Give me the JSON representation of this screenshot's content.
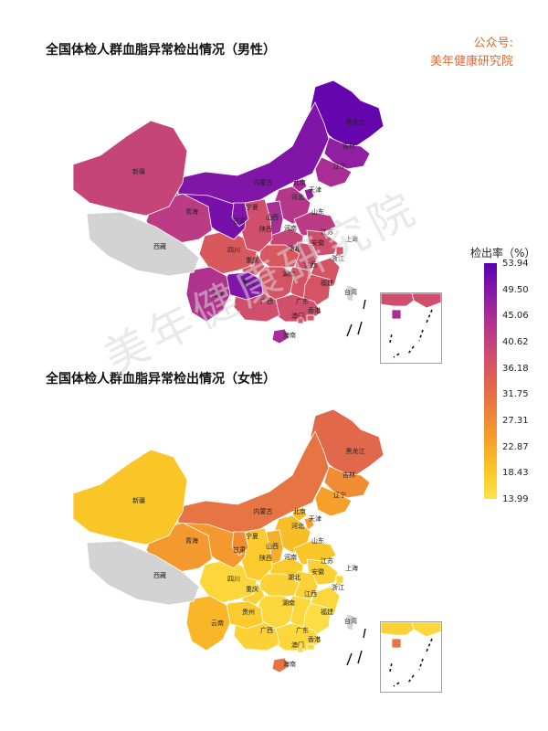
{
  "titles": {
    "male": "全国体检人群血脂异常检出情况（男性）",
    "female": "全国体检人群血脂异常检出情况（女性）"
  },
  "source": {
    "line1": "公众号:",
    "line2": "美年健康研究院"
  },
  "watermark": "美年健康研究院",
  "legend": {
    "title": "检出率（%）",
    "ticks": [
      "53.94",
      "49.50",
      "45.06",
      "40.62",
      "36.18",
      "31.75",
      "27.31",
      "22.87",
      "18.43",
      "13.99"
    ],
    "colors": [
      "#5b00b0",
      "#8a1aa6",
      "#b0328f",
      "#cc4a73",
      "#e0624f",
      "#ec803a",
      "#f5a02a",
      "#fac527",
      "#fde34a"
    ]
  },
  "no_data_color": "#d3d3d3",
  "provinces": [
    {
      "name": "黑龙江",
      "male": 53.0,
      "female": 33.0
    },
    {
      "name": "吉林",
      "male": 48.0,
      "female": 27.0
    },
    {
      "name": "辽宁",
      "male": 45.0,
      "female": 24.0
    },
    {
      "name": "内蒙古",
      "male": 50.0,
      "female": 31.0
    },
    {
      "name": "北京",
      "male": 45.0,
      "female": 20.0
    },
    {
      "name": "天津",
      "male": 47.0,
      "female": 24.0
    },
    {
      "name": "河北",
      "male": 43.0,
      "female": 20.0
    },
    {
      "name": "山西",
      "male": 45.0,
      "female": 22.0
    },
    {
      "name": "山东",
      "male": 42.0,
      "female": 19.0
    },
    {
      "name": "河南",
      "male": 40.0,
      "female": 18.0
    },
    {
      "name": "江苏",
      "male": 38.0,
      "female": 17.0
    },
    {
      "name": "上海",
      "male": 37.0,
      "female": 16.0
    },
    {
      "name": "安徽",
      "male": 38.0,
      "female": 17.0
    },
    {
      "name": "浙江",
      "male": 37.0,
      "female": 16.0
    },
    {
      "name": "湖北",
      "male": 36.0,
      "female": 17.0
    },
    {
      "name": "江西",
      "male": 37.0,
      "female": 16.0
    },
    {
      "name": "福建",
      "male": 37.0,
      "female": 15.0
    },
    {
      "name": "湖南",
      "male": 37.0,
      "female": 16.0
    },
    {
      "name": "广东",
      "male": 38.0,
      "female": 16.0
    },
    {
      "name": "广西",
      "male": 38.0,
      "female": 17.0
    },
    {
      "name": "海南",
      "male": 45.0,
      "female": 31.0
    },
    {
      "name": "香港",
      "male": 36.0,
      "female": 16.0
    },
    {
      "name": "澳门",
      "male": 36.0,
      "female": 16.0
    },
    {
      "name": "重庆",
      "male": 37.0,
      "female": 17.0
    },
    {
      "name": "四川",
      "male": 36.0,
      "female": 16.0
    },
    {
      "name": "贵州",
      "male": 50.0,
      "female": 18.0
    },
    {
      "name": "云南",
      "male": 44.0,
      "female": 21.0
    },
    {
      "name": "陕西",
      "male": 38.0,
      "female": 18.0
    },
    {
      "name": "甘肃",
      "male": 51.0,
      "female": 25.0
    },
    {
      "name": "宁夏",
      "male": 50.0,
      "female": 27.0
    },
    {
      "name": "青海",
      "male": 42.0,
      "female": 25.0
    },
    {
      "name": "新疆",
      "male": 40.0,
      "female": 19.0
    },
    {
      "name": "西藏",
      "male": null,
      "female": null
    },
    {
      "name": "台湾",
      "male": null,
      "female": null
    }
  ]
}
